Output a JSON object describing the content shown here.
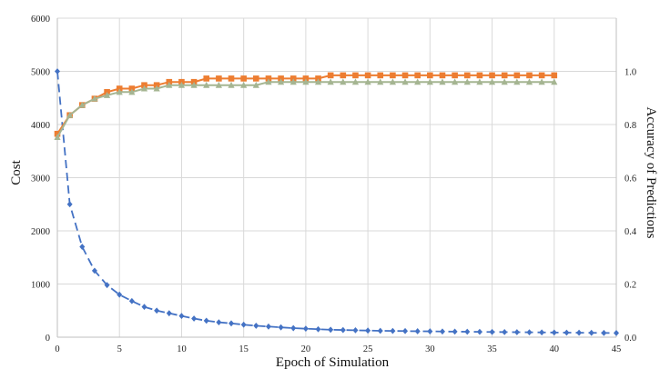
{
  "chart_data": {
    "type": "line",
    "title": "",
    "xlabel": "Epoch of Simulation",
    "ylabel": "Cost",
    "y2label": "Accuracy of Predictions",
    "xlim": [
      0,
      45
    ],
    "ylim": [
      0,
      6000
    ],
    "y2lim": [
      0,
      1.2
    ],
    "xticks": [
      "0",
      "5",
      "10",
      "15",
      "20",
      "25",
      "30",
      "35",
      "40",
      "45"
    ],
    "yticks": [
      "0",
      "1000",
      "2000",
      "3000",
      "4000",
      "5000",
      "6000"
    ],
    "y2ticks": [
      "0.0",
      "0.2",
      "0.4",
      "0.6",
      "0.8",
      "1.0"
    ],
    "grid": true,
    "legend": "none",
    "series": [
      {
        "axis": "left",
        "color": "#4472c4",
        "style": "dashed",
        "marker": "diamond",
        "x": [
          0,
          1,
          2,
          3,
          4,
          5,
          6,
          7,
          8,
          9,
          10,
          11,
          12,
          13,
          14,
          15,
          16,
          17,
          18,
          19,
          20,
          21,
          22,
          23,
          24,
          25,
          26,
          27,
          28,
          29,
          30,
          31,
          32,
          33,
          34,
          35,
          36,
          37,
          38,
          39,
          40,
          41,
          42,
          43,
          44,
          45
        ],
        "values": [
          5000,
          2500,
          1700,
          1250,
          980,
          800,
          680,
          570,
          500,
          450,
          400,
          350,
          310,
          280,
          260,
          235,
          215,
          200,
          185,
          170,
          160,
          150,
          140,
          135,
          130,
          125,
          120,
          118,
          115,
          112,
          110,
          107,
          105,
          103,
          100,
          98,
          96,
          94,
          92,
          90,
          88,
          86,
          84,
          82,
          80,
          78
        ]
      },
      {
        "axis": "right",
        "color": "#ed7d31",
        "style": "solid",
        "marker": "square",
        "x": [
          0,
          1,
          2,
          3,
          4,
          5,
          6,
          7,
          8,
          9,
          10,
          11,
          12,
          13,
          14,
          15,
          16,
          17,
          18,
          19,
          20,
          21,
          22,
          23,
          24,
          25,
          26,
          27,
          28,
          29,
          30,
          31,
          32,
          33,
          34,
          35,
          36,
          37,
          38,
          39,
          40
        ],
        "values": [
          0.765,
          0.835,
          0.873,
          0.897,
          0.922,
          0.935,
          0.935,
          0.948,
          0.948,
          0.96,
          0.96,
          0.96,
          0.973,
          0.973,
          0.973,
          0.973,
          0.973,
          0.973,
          0.973,
          0.973,
          0.973,
          0.973,
          0.985,
          0.985,
          0.985,
          0.985,
          0.985,
          0.985,
          0.985,
          0.985,
          0.985,
          0.985,
          0.985,
          0.985,
          0.985,
          0.985,
          0.985,
          0.985,
          0.985,
          0.985,
          0.985
        ]
      },
      {
        "axis": "right",
        "color": "#a5b592",
        "style": "solid",
        "marker": "triangle",
        "x": [
          0,
          1,
          2,
          3,
          4,
          5,
          6,
          7,
          8,
          9,
          10,
          11,
          12,
          13,
          14,
          15,
          16,
          17,
          18,
          19,
          20,
          21,
          22,
          23,
          24,
          25,
          26,
          27,
          28,
          29,
          30,
          31,
          32,
          33,
          34,
          35,
          36,
          37,
          38,
          39,
          40
        ],
        "values": [
          0.752,
          0.835,
          0.873,
          0.897,
          0.91,
          0.922,
          0.922,
          0.935,
          0.935,
          0.948,
          0.948,
          0.948,
          0.948,
          0.948,
          0.948,
          0.948,
          0.948,
          0.96,
          0.96,
          0.96,
          0.96,
          0.96,
          0.96,
          0.96,
          0.96,
          0.96,
          0.96,
          0.96,
          0.96,
          0.96,
          0.96,
          0.96,
          0.96,
          0.96,
          0.96,
          0.96,
          0.96,
          0.96,
          0.96,
          0.96,
          0.96
        ]
      }
    ]
  }
}
